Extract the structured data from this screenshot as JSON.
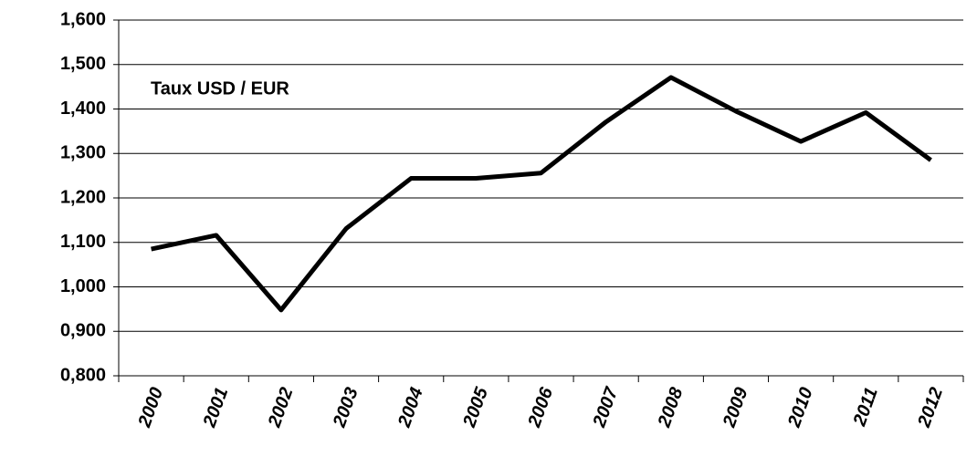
{
  "chart_data": {
    "type": "line",
    "annotation": "Taux USD / EUR",
    "categories": [
      "2000",
      "2001",
      "2002",
      "2003",
      "2004",
      "2005",
      "2006",
      "2007",
      "2008",
      "2009",
      "2010",
      "2011",
      "2012"
    ],
    "series": [
      {
        "name": "Taux USD / EUR",
        "color": "#000000",
        "values": [
          1.085,
          1.116,
          0.948,
          1.131,
          1.244,
          1.244,
          1.256,
          1.371,
          1.471,
          1.395,
          1.327,
          1.392,
          1.285
        ]
      }
    ],
    "ylim": [
      0.8,
      1.6
    ],
    "yticks": [
      {
        "value": 0.8,
        "label": "0,800"
      },
      {
        "value": 0.9,
        "label": "0,900"
      },
      {
        "value": 1.0,
        "label": "1,000"
      },
      {
        "value": 1.1,
        "label": "1,100"
      },
      {
        "value": 1.2,
        "label": "1,200"
      },
      {
        "value": 1.3,
        "label": "1,300"
      },
      {
        "value": 1.4,
        "label": "1,400"
      },
      {
        "value": 1.5,
        "label": "1,500"
      },
      {
        "value": 1.6,
        "label": "1,600"
      }
    ],
    "grid": true
  }
}
